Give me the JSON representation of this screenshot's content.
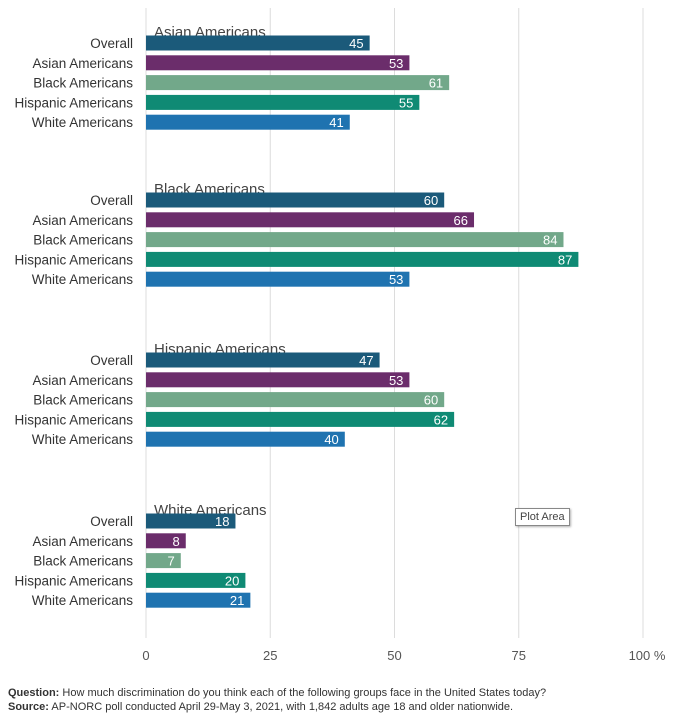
{
  "chart_data": {
    "type": "bar",
    "orientation": "horizontal",
    "xlim": [
      0,
      100
    ],
    "x_ticks": [
      0,
      25,
      50,
      75,
      100
    ],
    "x_tick_labels": [
      "0",
      "25",
      "50",
      "75",
      "100 %"
    ],
    "grid": true,
    "categories": [
      "Overall",
      "Asian Americans",
      "Black Americans",
      "Hispanic Americans",
      "White Americans"
    ],
    "groups": [
      {
        "title": "Asian Americans",
        "values": [
          45,
          53,
          61,
          55,
          41
        ]
      },
      {
        "title": "Black Americans",
        "values": [
          60,
          66,
          84,
          87,
          53
        ]
      },
      {
        "title": "Hispanic Americans",
        "values": [
          47,
          53,
          60,
          62,
          40
        ]
      },
      {
        "title": "White Americans",
        "values": [
          18,
          8,
          7,
          20,
          21
        ]
      }
    ],
    "category_colors": [
      "#1b5a7a",
      "#6b2d6b",
      "#72a88a",
      "#0f8a74",
      "#1f73b0"
    ]
  },
  "tooltip": "Plot Area",
  "footer": {
    "question_label": "Question:",
    "question_text": " How much discrimination do you think each of the following groups face in the United States today?",
    "source_label": "Source:",
    "source_text": " AP-NORC poll conducted April 29-May 3, 2021, with 1,842 adults age 18 and older nationwide."
  }
}
